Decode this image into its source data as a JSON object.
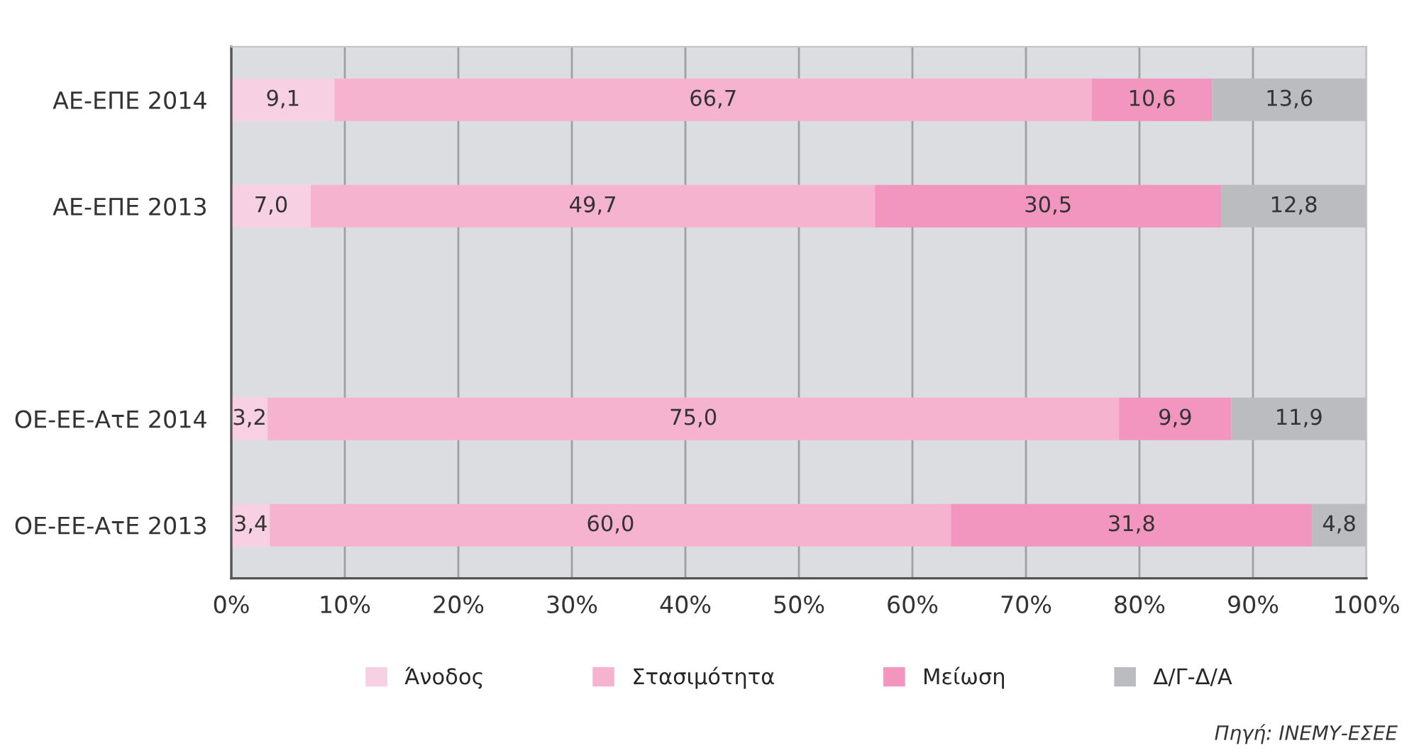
{
  "chart_data": {
    "type": "bar",
    "orientation": "horizontal",
    "stacked": true,
    "categories": [
      "ΑΕ-ΕΠΕ 2014",
      "ΑΕ-ΕΠΕ 2013",
      null,
      "ΟΕ-ΕΕ-ΑτΕ 2014",
      "ΟΕ-ΕΕ-ΑτΕ 2013"
    ],
    "series": [
      {
        "name": "Άνοδος",
        "color": "#f8d0e3",
        "values": [
          9.1,
          7.0,
          null,
          3.2,
          3.4
        ],
        "value_labels": [
          "9,1",
          "7,0",
          null,
          "3,2",
          "3,4"
        ]
      },
      {
        "name": "Στασιμότητα",
        "color": "#f5b3d0",
        "values": [
          66.7,
          49.7,
          null,
          75.0,
          60.0
        ],
        "value_labels": [
          "66,7",
          "49,7",
          null,
          "75,0",
          "60,0"
        ]
      },
      {
        "name": "Μείωση",
        "color": "#f295bf",
        "values": [
          10.6,
          30.5,
          null,
          9.9,
          31.8
        ],
        "value_labels": [
          "10,6",
          "30,5",
          null,
          "9,9",
          "31,8"
        ]
      },
      {
        "name": "Δ/Γ-Δ/Α",
        "color": "#bbbcc0",
        "values": [
          13.6,
          12.8,
          null,
          11.9,
          4.8
        ],
        "value_labels": [
          "13,6",
          "12,8",
          null,
          "11,9",
          "4,8"
        ]
      }
    ],
    "xlim": [
      0,
      100
    ],
    "xticks": [
      {
        "value": 0,
        "label": "0%"
      },
      {
        "value": 10,
        "label": "10%"
      },
      {
        "value": 20,
        "label": "20%"
      },
      {
        "value": 30,
        "label": "30%"
      },
      {
        "value": 40,
        "label": "40%"
      },
      {
        "value": 50,
        "label": "50%"
      },
      {
        "value": 60,
        "label": "60%"
      },
      {
        "value": 70,
        "label": "70%"
      },
      {
        "value": 80,
        "label": "80%"
      },
      {
        "value": 90,
        "label": "90%"
      },
      {
        "value": 100,
        "label": "100%"
      }
    ],
    "grid": "x",
    "legend": "bottom",
    "annotations": [
      "Πηγή: ΙΝΕΜΥ-ΕΣΕΕ"
    ]
  }
}
